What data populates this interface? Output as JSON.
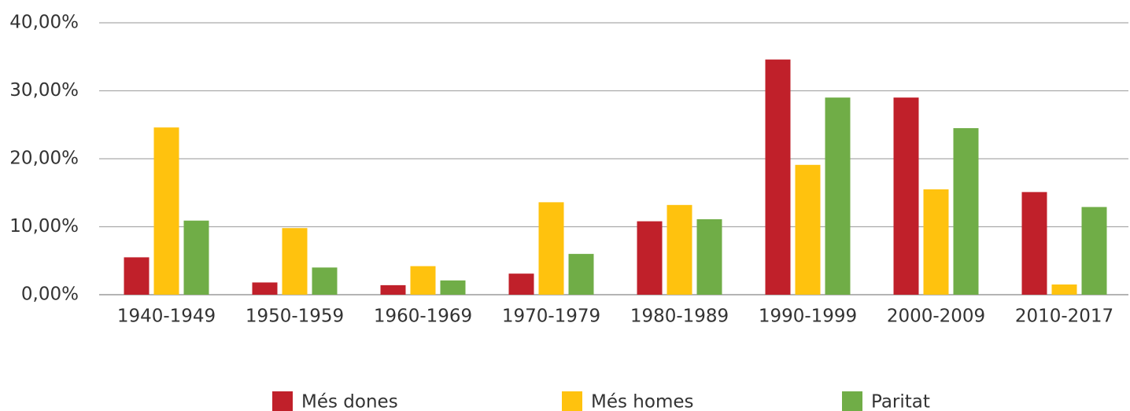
{
  "chart_data": {
    "type": "bar",
    "categories": [
      "1940-1949",
      "1950-1959",
      "1960-1969",
      "1970-1979",
      "1980-1989",
      "1990-1999",
      "2000-2009",
      "2010-2017"
    ],
    "series": [
      {
        "name": "Més dones",
        "color": "#c0202a",
        "values": [
          5.5,
          1.8,
          1.4,
          3.1,
          10.8,
          34.6,
          29.0,
          15.1
        ]
      },
      {
        "name": "Més homes",
        "color": "#ffc20e",
        "values": [
          24.6,
          9.8,
          4.2,
          13.6,
          13.2,
          19.1,
          15.5,
          1.5
        ]
      },
      {
        "name": "Paritat",
        "color": "#70ad47",
        "values": [
          10.9,
          4.0,
          2.1,
          6.0,
          11.1,
          29.0,
          24.5,
          12.9
        ]
      }
    ],
    "ylim": [
      0,
      40
    ],
    "yticks": [
      {
        "value": 0,
        "label": "0,00%"
      },
      {
        "value": 10,
        "label": "10,00%"
      },
      {
        "value": 20,
        "label": "20,00%"
      },
      {
        "value": 30,
        "label": "30,00%"
      },
      {
        "value": 40,
        "label": "40,00%"
      }
    ],
    "grid": true,
    "legend": "bottom"
  }
}
